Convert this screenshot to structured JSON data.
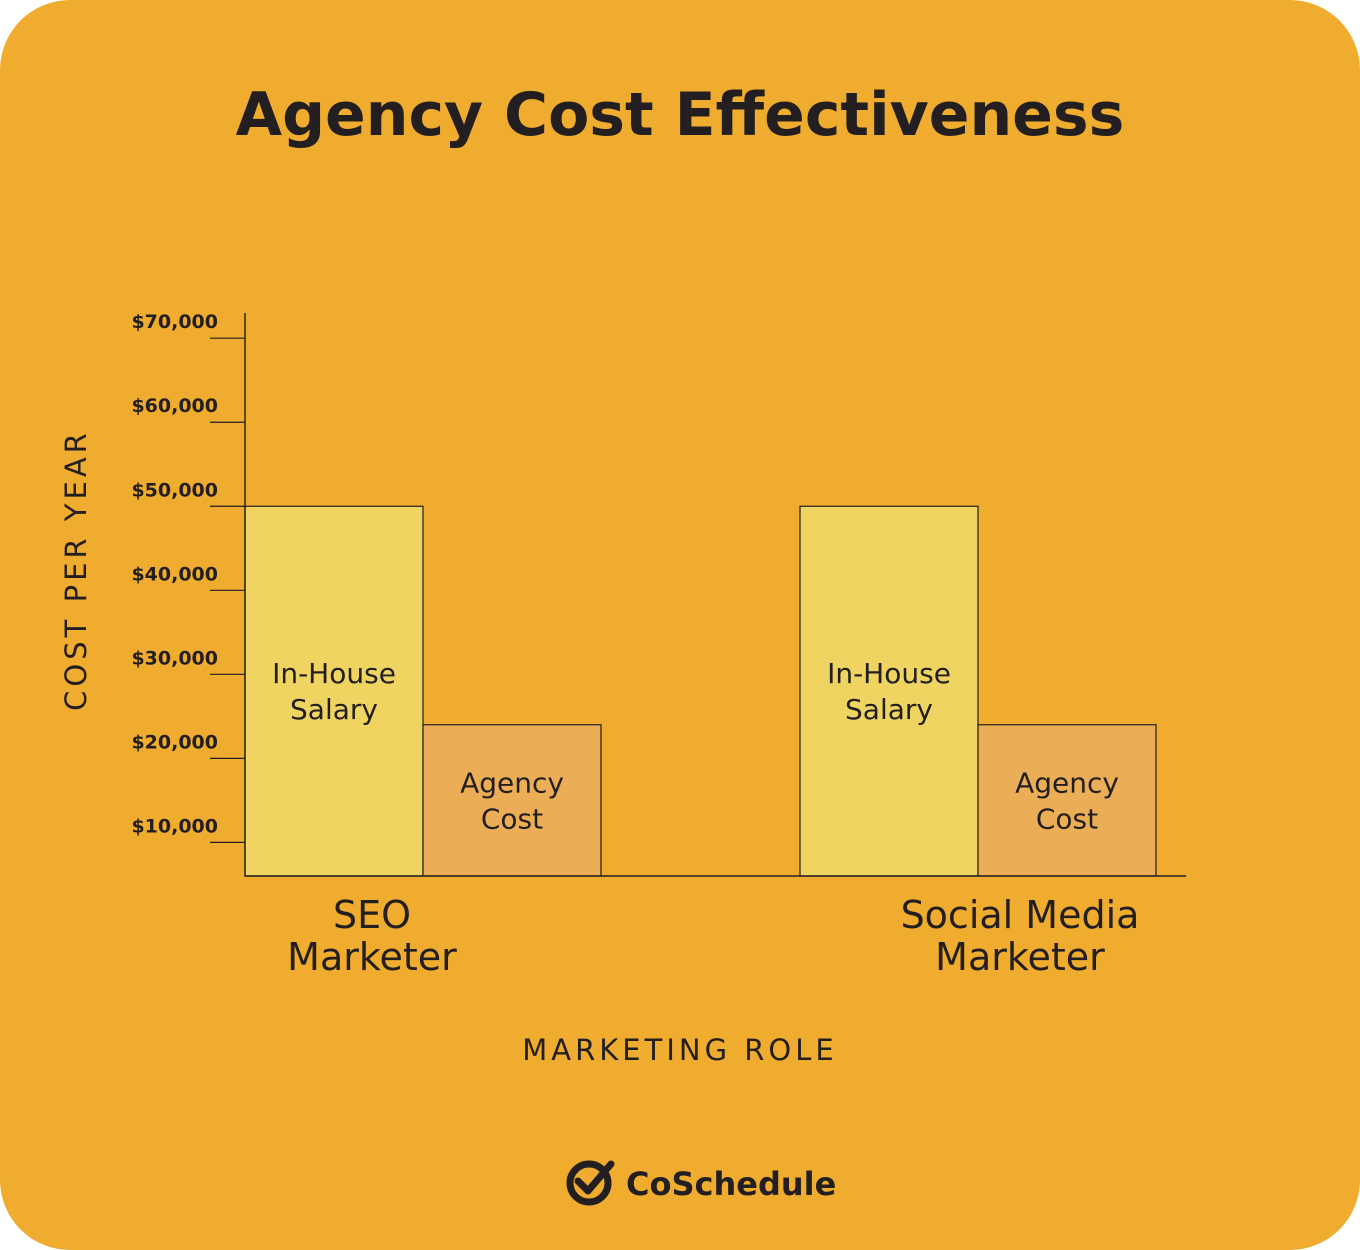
{
  "colors": {
    "background": "#efac2e",
    "in_house": "#efd462",
    "agency": "#ecad57",
    "ink": "#231f20"
  },
  "brand": {
    "name": "CoSchedule",
    "icon": "checkmark-circle-icon"
  },
  "chart_data": {
    "type": "bar",
    "title": "Agency Cost Effectiveness",
    "xlabel": "MARKETING ROLE",
    "ylabel": "COST PER YEAR",
    "categories": [
      [
        "SEO",
        "Marketer"
      ],
      [
        "Social Media",
        "Marketer"
      ]
    ],
    "series": [
      {
        "label_lines": [
          "In-House",
          "Salary"
        ],
        "values": [
          50000,
          50000
        ]
      },
      {
        "label_lines": [
          "Agency",
          "Cost"
        ],
        "values": [
          24000,
          24000
        ]
      }
    ],
    "y_ticks": [
      10000,
      20000,
      30000,
      40000,
      50000,
      60000,
      70000
    ],
    "y_tick_labels": [
      "$10,000",
      "$20,000",
      "$30,000",
      "$40,000",
      "$50,000",
      "$60,000",
      "$70,000"
    ],
    "ylim": [
      6000,
      73000
    ],
    "grid": false,
    "legend": "none"
  }
}
